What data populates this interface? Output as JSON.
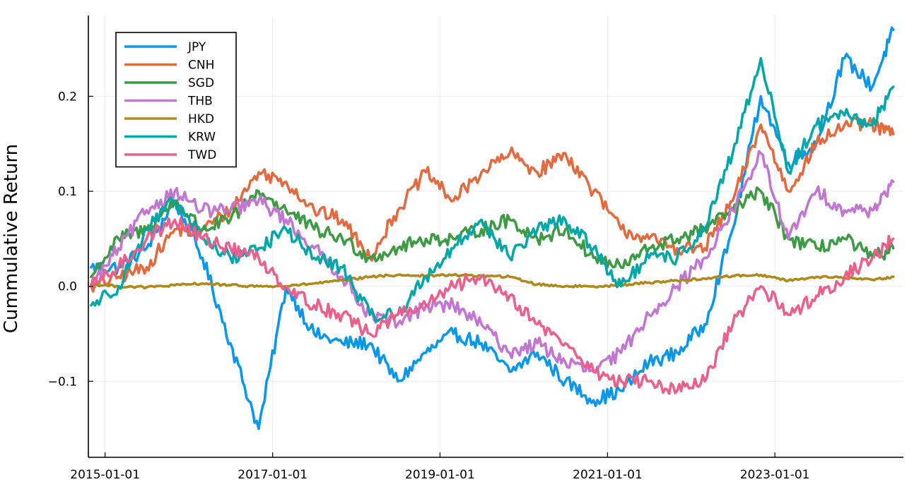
{
  "chart_data": {
    "type": "line",
    "xlabel": "",
    "ylabel": "Cummulative Return",
    "xlim": [
      "2014-10-20",
      "2024-07-15"
    ],
    "ylim": [
      -0.18,
      0.285
    ],
    "xticks": [
      "2015-01-01",
      "2017-01-01",
      "2019-01-01",
      "2021-01-01",
      "2023-01-01"
    ],
    "yticks": [
      -0.1,
      0.0,
      0.1,
      0.2
    ],
    "ytick_labels": [
      "−0.1",
      "0.0",
      "0.1",
      "0.2"
    ],
    "grid": true,
    "legend_position": "top-left",
    "x": [
      "2014-11-01",
      "2015-03-01",
      "2015-07-01",
      "2015-11-01",
      "2016-03-01",
      "2016-07-01",
      "2016-11-01",
      "2017-03-01",
      "2017-07-01",
      "2017-11-01",
      "2018-03-01",
      "2018-07-01",
      "2018-11-01",
      "2019-03-01",
      "2019-07-01",
      "2019-11-01",
      "2020-03-01",
      "2020-07-01",
      "2020-11-01",
      "2021-03-01",
      "2021-07-01",
      "2021-11-01",
      "2022-03-01",
      "2022-07-01",
      "2022-11-01",
      "2023-03-01",
      "2023-07-01",
      "2023-11-01",
      "2024-03-01",
      "2024-06-01"
    ],
    "series": [
      {
        "name": "JPY",
        "color": "#0b97e8",
        "values": [
          0.02,
          0.02,
          0.04,
          0.09,
          0.03,
          -0.06,
          -0.15,
          0.0,
          -0.05,
          -0.06,
          -0.06,
          -0.1,
          -0.07,
          -0.05,
          -0.06,
          -0.09,
          -0.07,
          -0.1,
          -0.12,
          -0.11,
          -0.08,
          -0.07,
          -0.04,
          0.06,
          0.2,
          0.13,
          0.15,
          0.24,
          0.21,
          0.27
        ]
      },
      {
        "name": "CNH",
        "color": "#e26a3f",
        "values": [
          0.0,
          0.01,
          0.02,
          0.06,
          0.06,
          0.08,
          0.12,
          0.11,
          0.08,
          0.07,
          0.03,
          0.08,
          0.12,
          0.09,
          0.12,
          0.14,
          0.12,
          0.14,
          0.1,
          0.06,
          0.05,
          0.04,
          0.04,
          0.09,
          0.17,
          0.1,
          0.15,
          0.17,
          0.17,
          0.16
        ]
      },
      {
        "name": "SGD",
        "color": "#3c9b44",
        "values": [
          0.01,
          0.05,
          0.06,
          0.09,
          0.06,
          0.07,
          0.1,
          0.08,
          0.06,
          0.05,
          0.03,
          0.04,
          0.05,
          0.05,
          0.06,
          0.07,
          0.05,
          0.06,
          0.03,
          0.02,
          0.04,
          0.05,
          0.06,
          0.08,
          0.1,
          0.05,
          0.04,
          0.05,
          0.03,
          0.04
        ]
      },
      {
        "name": "THB",
        "color": "#c176d1",
        "values": [
          0.0,
          0.04,
          0.08,
          0.1,
          0.08,
          0.08,
          0.09,
          0.07,
          0.04,
          0.01,
          -0.03,
          -0.04,
          -0.02,
          -0.02,
          -0.04,
          -0.07,
          -0.06,
          -0.08,
          -0.09,
          -0.07,
          -0.03,
          0.0,
          0.03,
          0.08,
          0.14,
          0.05,
          0.1,
          0.08,
          0.08,
          0.11
        ]
      },
      {
        "name": "HKD",
        "color": "#ad8a1a",
        "values": [
          0.002,
          0.0,
          -0.001,
          0.001,
          0.003,
          0.001,
          0.0,
          0.0,
          0.003,
          0.006,
          0.01,
          0.012,
          0.011,
          0.012,
          0.011,
          0.01,
          0.002,
          0.0,
          0.0,
          0.001,
          0.004,
          0.006,
          0.008,
          0.011,
          0.012,
          0.006,
          0.01,
          0.009,
          0.007,
          0.01
        ]
      },
      {
        "name": "KRW",
        "color": "#00a6a8",
        "values": [
          -0.02,
          0.0,
          0.06,
          0.09,
          0.05,
          0.03,
          0.04,
          0.06,
          0.03,
          0.02,
          -0.03,
          -0.03,
          0.01,
          0.04,
          0.07,
          0.03,
          0.06,
          0.07,
          0.04,
          0.0,
          0.03,
          0.03,
          0.06,
          0.14,
          0.24,
          0.12,
          0.17,
          0.18,
          0.17,
          0.21
        ]
      },
      {
        "name": "TWD",
        "color": "#e8608b",
        "values": [
          0.0,
          0.02,
          0.05,
          0.07,
          0.05,
          0.04,
          0.03,
          0.0,
          -0.02,
          -0.03,
          -0.05,
          -0.03,
          -0.02,
          0.0,
          0.01,
          -0.01,
          -0.04,
          -0.06,
          -0.09,
          -0.1,
          -0.1,
          -0.11,
          -0.1,
          -0.04,
          0.0,
          -0.03,
          -0.01,
          0.01,
          0.03,
          0.05
        ]
      }
    ]
  }
}
